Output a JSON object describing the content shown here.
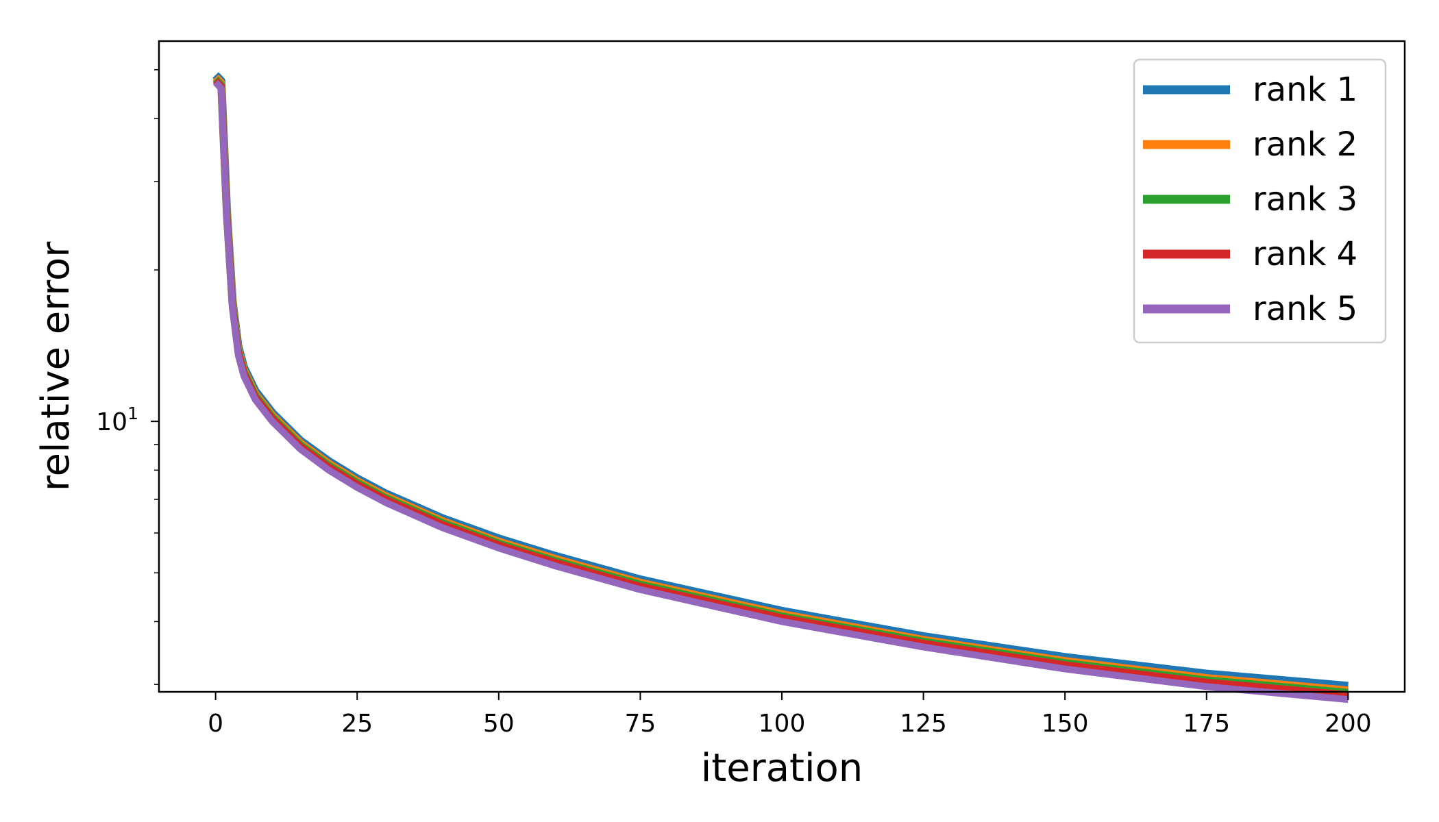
{
  "chart_data": {
    "type": "line",
    "title": "",
    "xlabel": "iteration",
    "ylabel": "relative error",
    "xlim": [
      -10,
      210
    ],
    "ylim": [
      2.9,
      57
    ],
    "yscale": "log",
    "xticks": [
      0,
      25,
      50,
      75,
      100,
      125,
      150,
      175,
      200
    ],
    "yticks": [
      {
        "value": 10,
        "base": "10",
        "exp": "1"
      }
    ],
    "grid": false,
    "legend_position": "top-right",
    "series": [
      {
        "name": "rank 1",
        "color": "#1f77b4",
        "x": [
          0,
          1,
          2,
          3,
          4,
          5,
          7,
          10,
          15,
          20,
          25,
          30,
          40,
          50,
          60,
          75,
          100,
          125,
          150,
          175,
          200
        ],
        "values": [
          48.8,
          47.5,
          26.0,
          17.3,
          14.1,
          12.8,
          11.5,
          10.4,
          9.15,
          8.33,
          7.7,
          7.19,
          6.42,
          5.85,
          5.4,
          4.85,
          4.2,
          3.74,
          3.4,
          3.15,
          2.98
        ]
      },
      {
        "name": "rank 2",
        "color": "#ff7f0e",
        "x": [
          0,
          1,
          2,
          3,
          4,
          5,
          7,
          10,
          15,
          20,
          25,
          30,
          40,
          50,
          60,
          75,
          100,
          125,
          150,
          175,
          200
        ],
        "values": [
          48.3,
          47.0,
          25.7,
          17.1,
          13.9,
          12.65,
          11.35,
          10.28,
          9.05,
          8.24,
          7.61,
          7.11,
          6.34,
          5.77,
          5.33,
          4.78,
          4.14,
          3.68,
          3.34,
          3.09,
          2.92
        ]
      },
      {
        "name": "rank 3",
        "color": "#2ca02c",
        "x": [
          0,
          1,
          2,
          3,
          4,
          5,
          7,
          10,
          15,
          20,
          25,
          30,
          40,
          50,
          60,
          75,
          100,
          125,
          150,
          175,
          200
        ],
        "values": [
          47.9,
          46.6,
          25.5,
          16.95,
          13.8,
          12.55,
          11.26,
          10.2,
          8.97,
          8.17,
          7.55,
          7.05,
          6.29,
          5.72,
          5.28,
          4.74,
          4.1,
          3.65,
          3.31,
          3.06,
          2.89
        ]
      },
      {
        "name": "rank 4",
        "color": "#d62728",
        "x": [
          0,
          1,
          2,
          3,
          4,
          5,
          7,
          10,
          15,
          20,
          25,
          30,
          40,
          50,
          60,
          75,
          100,
          125,
          150,
          175,
          200
        ],
        "values": [
          47.6,
          46.3,
          25.3,
          16.85,
          13.7,
          12.45,
          11.18,
          10.13,
          8.91,
          8.11,
          7.49,
          7.0,
          6.24,
          5.68,
          5.24,
          4.7,
          4.07,
          3.62,
          3.28,
          3.03,
          2.86
        ]
      },
      {
        "name": "rank 5",
        "color": "#9467bd",
        "x": [
          0,
          1,
          2,
          3,
          4,
          5,
          7,
          10,
          15,
          20,
          25,
          30,
          40,
          50,
          60,
          75,
          100,
          125,
          150,
          175,
          200
        ],
        "values": [
          47.2,
          45.9,
          25.0,
          16.7,
          13.55,
          12.3,
          11.05,
          10.0,
          8.8,
          8.0,
          7.39,
          6.9,
          6.15,
          5.6,
          5.16,
          4.63,
          4.0,
          3.56,
          3.22,
          2.97,
          2.8
        ]
      }
    ]
  }
}
